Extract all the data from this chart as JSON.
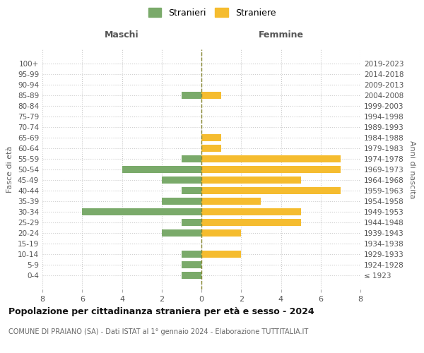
{
  "age_groups": [
    "100+",
    "95-99",
    "90-94",
    "85-89",
    "80-84",
    "75-79",
    "70-74",
    "65-69",
    "60-64",
    "55-59",
    "50-54",
    "45-49",
    "40-44",
    "35-39",
    "30-34",
    "25-29",
    "20-24",
    "15-19",
    "10-14",
    "5-9",
    "0-4"
  ],
  "birth_years": [
    "≤ 1923",
    "1924-1928",
    "1929-1933",
    "1934-1938",
    "1939-1943",
    "1944-1948",
    "1949-1953",
    "1954-1958",
    "1959-1963",
    "1964-1968",
    "1969-1973",
    "1974-1978",
    "1979-1983",
    "1984-1988",
    "1989-1993",
    "1994-1998",
    "1999-2003",
    "2004-2008",
    "2009-2013",
    "2014-2018",
    "2019-2023"
  ],
  "stranieri_maschi": [
    0,
    0,
    0,
    1,
    0,
    0,
    0,
    0,
    0,
    1,
    4,
    2,
    1,
    2,
    6,
    1,
    2,
    0,
    1,
    1,
    1
  ],
  "straniere_femmine": [
    0,
    0,
    0,
    1,
    0,
    0,
    0,
    1,
    1,
    7,
    7,
    5,
    7,
    3,
    5,
    5,
    2,
    0,
    2,
    0,
    0
  ],
  "color_maschi": "#7aaa6a",
  "color_femmine": "#f5bc2f",
  "title_main": "Popolazione per cittadinanza straniera per età e sesso - 2024",
  "subtitle": "COMUNE DI PRAIANO (SA) - Dati ISTAT al 1° gennaio 2024 - Elaborazione TUTTITALIA.IT",
  "xlabel_left": "Maschi",
  "xlabel_right": "Femmine",
  "ylabel": "Fasce di età",
  "ylabel_right": "Anni di nascita",
  "legend_stranieri": "Stranieri",
  "legend_straniere": "Straniere",
  "xlim": 8,
  "bg_color": "#ffffff",
  "grid_color": "#cccccc"
}
